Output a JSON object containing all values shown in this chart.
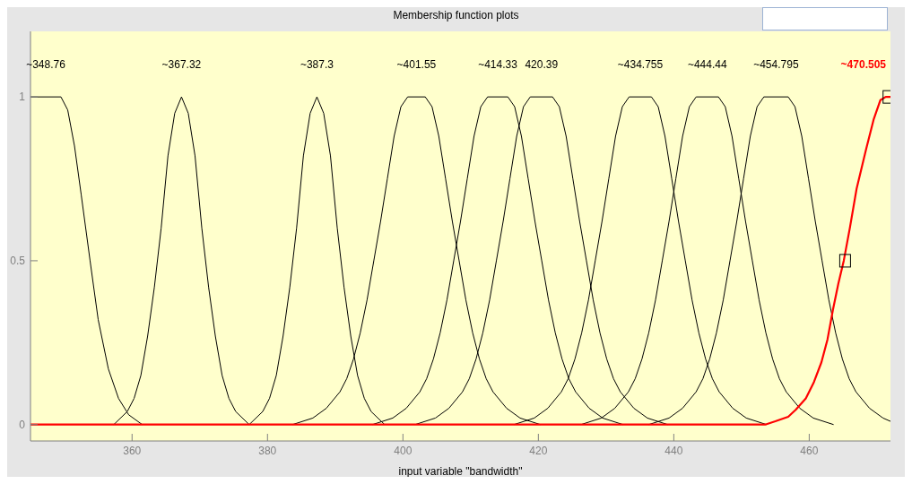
{
  "chart_data": {
    "type": "line",
    "title": "Membership function plots",
    "xlabel": "input variable \"bandwidth\"",
    "xlim": [
      345,
      472
    ],
    "xticks": [
      360,
      380,
      400,
      420,
      440,
      460
    ],
    "ylim": [
      -0.05,
      1.2
    ],
    "yticks": [
      0,
      0.5,
      1
    ],
    "grid": false,
    "line_style": "solid",
    "marker": "none",
    "series": [
      {
        "color": "#000000",
        "x": [
          345,
          349.5,
          350.5,
          351.5,
          352.5,
          353.8,
          355,
          356.5,
          358,
          359.5,
          361.5
        ],
        "values": [
          1,
          1,
          0.96,
          0.85,
          0.7,
          0.5,
          0.32,
          0.17,
          0.08,
          0.03,
          0
        ]
      },
      {
        "color": "#000000",
        "x": [
          357.3,
          359.3,
          360.3,
          361.3,
          362.3,
          363.3,
          364.3,
          365.3,
          366.3,
          367.3,
          368.3,
          369.3,
          370.3,
          371.3,
          372.3,
          373.3,
          374.3,
          375.3,
          377.3
        ],
        "values": [
          0,
          0.04,
          0.08,
          0.15,
          0.27,
          0.42,
          0.6,
          0.82,
          0.95,
          1,
          0.95,
          0.82,
          0.6,
          0.42,
          0.27,
          0.15,
          0.08,
          0.04,
          0
        ]
      },
      {
        "color": "#000000",
        "x": [
          377.3,
          379.3,
          380.3,
          381.3,
          382.3,
          383.3,
          384.3,
          385.3,
          386.3,
          387.3,
          388.3,
          389.3,
          390.3,
          391.3,
          392.3,
          393.3,
          394.3,
          395.3,
          397.3
        ],
        "values": [
          0,
          0.04,
          0.08,
          0.15,
          0.27,
          0.42,
          0.6,
          0.82,
          0.95,
          1,
          0.95,
          0.82,
          0.6,
          0.42,
          0.27,
          0.15,
          0.08,
          0.04,
          0
        ]
      },
      {
        "color": "#000000",
        "x": [
          383.7,
          386.7,
          388.7,
          390.7,
          391.7,
          392.7,
          393.7,
          394.7,
          395.7,
          396.7,
          397.7,
          398.7,
          399.7,
          400.7,
          403.3,
          404.3,
          405.3,
          406.3,
          407.3,
          408.3,
          409.3,
          410.3,
          411.3,
          412.3,
          413.3,
          415.3,
          417.3,
          420.3
        ],
        "values": [
          0,
          0.02,
          0.05,
          0.1,
          0.14,
          0.2,
          0.28,
          0.38,
          0.5,
          0.62,
          0.75,
          0.88,
          0.97,
          1,
          1,
          0.97,
          0.88,
          0.75,
          0.62,
          0.5,
          0.38,
          0.28,
          0.2,
          0.14,
          0.1,
          0.05,
          0.02,
          0
        ]
      },
      {
        "color": "#000000",
        "x": [
          395.5,
          398.5,
          400.5,
          402.5,
          403.5,
          404.5,
          405.5,
          406.5,
          407.5,
          408.5,
          409.5,
          410.5,
          411.5,
          412.5,
          415.5,
          416.5,
          417.5,
          418.5,
          419.5,
          420.5,
          421.5,
          422.5,
          423.5,
          424.5,
          425.5,
          427.5,
          429.5,
          432.5
        ],
        "values": [
          0,
          0.02,
          0.05,
          0.1,
          0.14,
          0.2,
          0.28,
          0.38,
          0.5,
          0.62,
          0.75,
          0.88,
          0.97,
          1,
          1,
          0.97,
          0.88,
          0.75,
          0.62,
          0.5,
          0.38,
          0.28,
          0.2,
          0.14,
          0.1,
          0.05,
          0.02,
          0
        ]
      },
      {
        "color": "#000000",
        "x": [
          401.8,
          404.8,
          406.8,
          408.8,
          409.8,
          410.8,
          411.8,
          412.8,
          413.8,
          414.8,
          415.8,
          416.8,
          417.8,
          418.8,
          422.1,
          423.1,
          424.1,
          425.1,
          426.1,
          427.1,
          428.1,
          429.1,
          430.1,
          431.1,
          432.1,
          434.1,
          436.1,
          439.1
        ],
        "values": [
          0,
          0.02,
          0.05,
          0.1,
          0.14,
          0.2,
          0.28,
          0.38,
          0.5,
          0.62,
          0.75,
          0.88,
          0.97,
          1,
          1,
          0.97,
          0.88,
          0.75,
          0.62,
          0.5,
          0.38,
          0.28,
          0.2,
          0.14,
          0.1,
          0.05,
          0.02,
          0
        ]
      },
      {
        "color": "#000000",
        "x": [
          416.4,
          419.4,
          421.4,
          423.4,
          424.4,
          425.4,
          426.4,
          427.4,
          428.4,
          429.4,
          430.4,
          431.4,
          432.4,
          433.4,
          436.7,
          437.7,
          438.7,
          439.7,
          440.7,
          441.7,
          442.7,
          443.7,
          444.7,
          445.7,
          446.7,
          448.7,
          450.7,
          453.7
        ],
        "values": [
          0,
          0.02,
          0.05,
          0.1,
          0.14,
          0.2,
          0.28,
          0.38,
          0.5,
          0.62,
          0.75,
          0.88,
          0.97,
          1,
          1,
          0.97,
          0.88,
          0.75,
          0.62,
          0.5,
          0.38,
          0.28,
          0.2,
          0.14,
          0.1,
          0.05,
          0.02,
          0
        ]
      },
      {
        "color": "#000000",
        "x": [
          426.3,
          429.3,
          431.3,
          433.3,
          434.3,
          435.3,
          436.3,
          437.3,
          438.3,
          439.3,
          440.3,
          441.3,
          442.3,
          443.3,
          446.6,
          447.6,
          448.6,
          449.6,
          450.6,
          451.6,
          452.6,
          453.6,
          454.6,
          455.6,
          456.6,
          458.6,
          460.6,
          463.6
        ],
        "values": [
          0,
          0.02,
          0.05,
          0.1,
          0.14,
          0.2,
          0.28,
          0.38,
          0.5,
          0.62,
          0.75,
          0.88,
          0.97,
          1,
          1,
          0.97,
          0.88,
          0.75,
          0.62,
          0.5,
          0.38,
          0.28,
          0.2,
          0.14,
          0.1,
          0.05,
          0.02,
          0
        ]
      },
      {
        "color": "#000000",
        "x": [
          436.3,
          439.3,
          441.3,
          443.3,
          444.3,
          445.3,
          446.3,
          447.3,
          448.3,
          449.3,
          450.3,
          451.3,
          452.3,
          453.3,
          456.9,
          457.9,
          458.9,
          459.9,
          460.9,
          461.9,
          462.9,
          463.9,
          464.9,
          465.9,
          466.9,
          468.9,
          470.9,
          472
        ],
        "values": [
          0,
          0.02,
          0.05,
          0.1,
          0.14,
          0.2,
          0.28,
          0.38,
          0.5,
          0.62,
          0.75,
          0.88,
          0.97,
          1,
          1,
          0.97,
          0.88,
          0.75,
          0.62,
          0.5,
          0.38,
          0.28,
          0.2,
          0.14,
          0.1,
          0.05,
          0.02,
          0.01
        ]
      },
      {
        "color": "#ff0000",
        "x": [
          345,
          453.5,
          455,
          456.9,
          458,
          459.5,
          460.7,
          461.8,
          462.7,
          463.5,
          464.3,
          465.1,
          466,
          467,
          468.4,
          469.5,
          470.5,
          471.3,
          472
        ],
        "values": [
          0,
          0,
          0.01,
          0.024,
          0.045,
          0.08,
          0.13,
          0.19,
          0.26,
          0.35,
          0.43,
          0.5,
          0.6,
          0.72,
          0.84,
          0.93,
          0.99,
          1,
          1
        ]
      },
      {
        "type": "scatter",
        "marker": "square",
        "color": "#000000",
        "x": [
          465.3,
          471.7
        ],
        "values": [
          0.5,
          1
        ]
      }
    ],
    "annotations": [
      "~348.76",
      "~367.32",
      "~387.3",
      "~401.55",
      "~414.33",
      "420.39",
      "~434.755",
      "~444.44",
      "~454.795",
      "~470.505"
    ]
  }
}
